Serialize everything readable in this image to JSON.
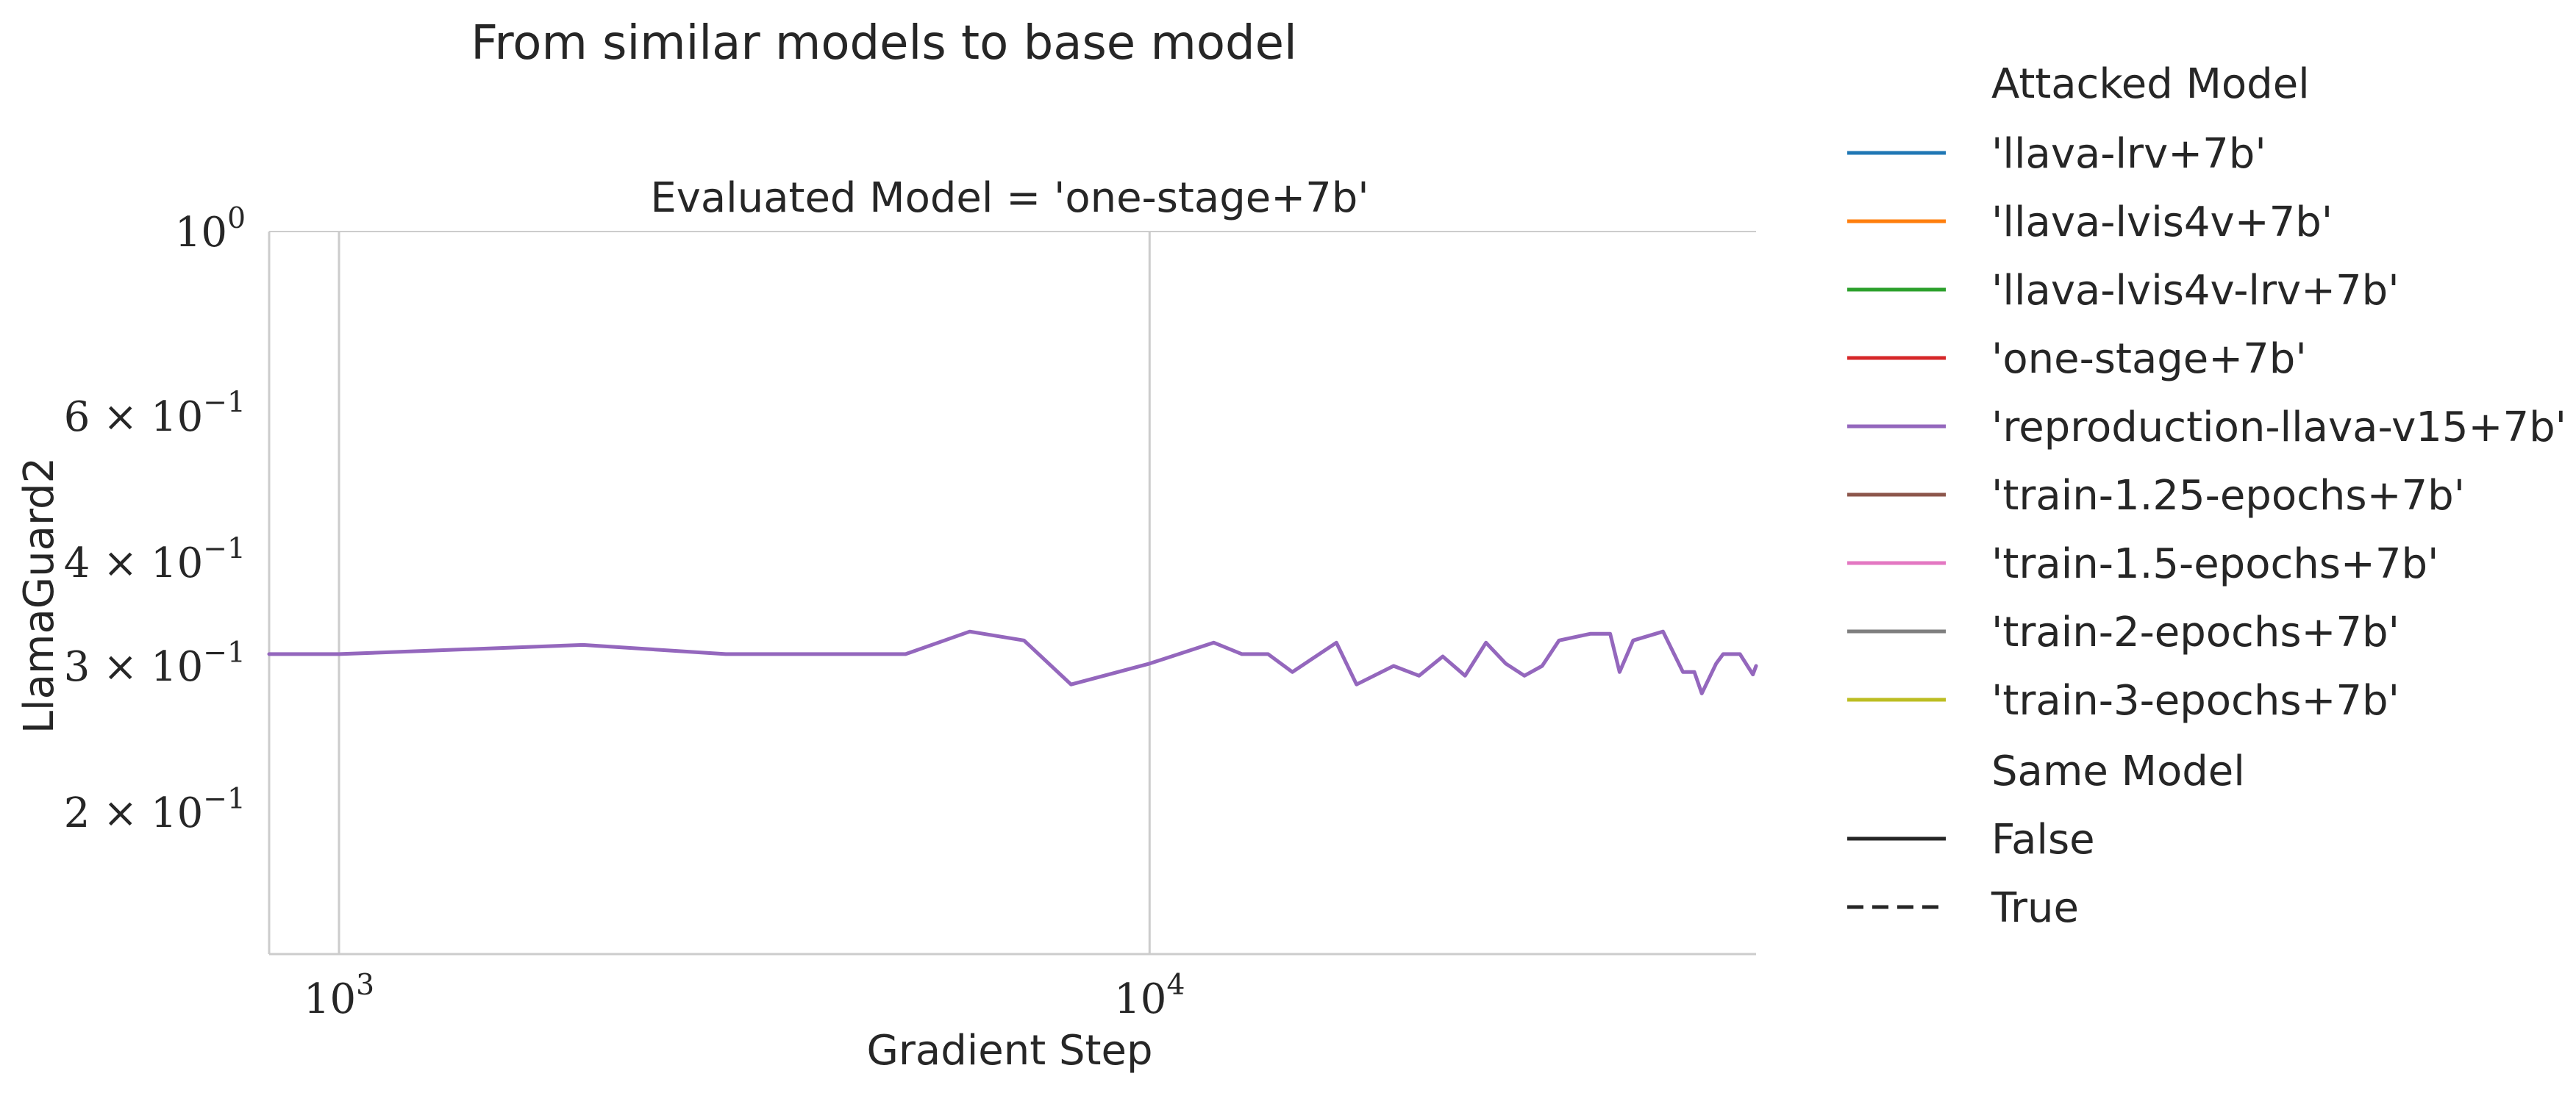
{
  "chart_data": {
    "type": "line",
    "suptitle": "From similar models to base model",
    "title": "Evaluated Model = 'one-stage+7b'",
    "xlabel": "Gradient Step",
    "ylabel": "LlamaGuard2",
    "xscale": "log",
    "yscale": "log",
    "xlim": [
      820,
      56000
    ],
    "ylim": [
      0.135,
      1.0
    ],
    "grid": "vertical",
    "legend_placement": "right, outside",
    "x_ticks": [
      {
        "value": 1000,
        "label": "10^3"
      },
      {
        "value": 10000,
        "label": "10^4"
      }
    ],
    "y_ticks": [
      {
        "value": 1.0,
        "label": "10^0"
      },
      {
        "value": 0.6,
        "label": "6 × 10^-1"
      },
      {
        "value": 0.4,
        "label": "4 × 10^-1"
      },
      {
        "value": 0.3,
        "label": "3 × 10^-1"
      },
      {
        "value": 0.2,
        "label": "2 × 10^-1"
      }
    ],
    "legend": {
      "hue_title": "Attacked Model",
      "hue_entries": [
        {
          "label": "'llava-lrv+7b'",
          "color": "#1f77b4"
        },
        {
          "label": "'llava-lvis4v+7b'",
          "color": "#ff7f0e"
        },
        {
          "label": "'llava-lvis4v-lrv+7b'",
          "color": "#2ca02c"
        },
        {
          "label": "'one-stage+7b'",
          "color": "#d62728"
        },
        {
          "label": "'reproduction-llava-v15+7b'",
          "color": "#9467bd"
        },
        {
          "label": "'train-1.25-epochs+7b'",
          "color": "#8c564b"
        },
        {
          "label": "'train-1.5-epochs+7b'",
          "color": "#e377c2"
        },
        {
          "label": "'train-2-epochs+7b'",
          "color": "#7f7f7f"
        },
        {
          "label": "'train-3-epochs+7b'",
          "color": "#bcbd22"
        }
      ],
      "style_title": "Same Model",
      "style_entries": [
        {
          "label": "False",
          "dash": "solid"
        },
        {
          "label": "True",
          "dash": "dashed"
        }
      ]
    },
    "series": [
      {
        "attacked_model": "'reproduction-llava-v15+7b'",
        "same_model": "False",
        "color": "#9467bd",
        "dash": "solid",
        "points": [
          [
            820,
            0.31
          ],
          [
            1000,
            0.31
          ],
          [
            2000,
            0.318
          ],
          [
            3000,
            0.31
          ],
          [
            5000,
            0.31
          ],
          [
            6000,
            0.33
          ],
          [
            7000,
            0.322
          ],
          [
            8000,
            0.285
          ],
          [
            10000,
            0.302
          ],
          [
            12000,
            0.32
          ],
          [
            13000,
            0.31
          ],
          [
            14000,
            0.31
          ],
          [
            15000,
            0.295
          ],
          [
            17000,
            0.32
          ],
          [
            18000,
            0.285
          ],
          [
            20000,
            0.3
          ],
          [
            21500,
            0.292
          ],
          [
            23000,
            0.308
          ],
          [
            24500,
            0.292
          ],
          [
            26000,
            0.32
          ],
          [
            27500,
            0.302
          ],
          [
            29000,
            0.292
          ],
          [
            30500,
            0.3
          ],
          [
            32000,
            0.322
          ],
          [
            35000,
            0.328
          ],
          [
            37000,
            0.328
          ],
          [
            38000,
            0.295
          ],
          [
            39500,
            0.322
          ],
          [
            43000,
            0.33
          ],
          [
            45500,
            0.295
          ],
          [
            47000,
            0.295
          ],
          [
            48000,
            0.278
          ],
          [
            50000,
            0.302
          ],
          [
            51000,
            0.31
          ],
          [
            53500,
            0.31
          ],
          [
            55500,
            0.293
          ],
          [
            58500,
            0.3
          ]
        ]
      }
    ]
  }
}
